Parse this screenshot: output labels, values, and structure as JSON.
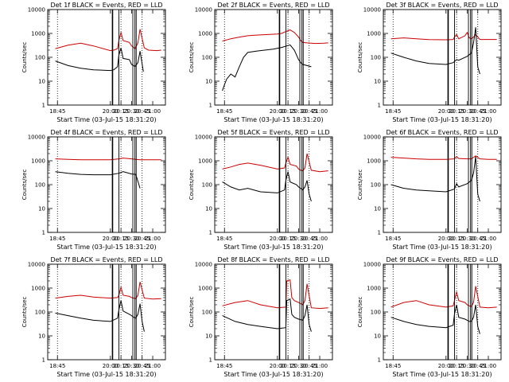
{
  "figure": {
    "xlabel": "Start Time (03-Jul-15 18:31:20)",
    "ylabel": "Counts/sec",
    "legend_black": "Events",
    "legend_red": "LLD",
    "black_color": "#000000",
    "red_color": "#cc0000"
  },
  "chart_data": [
    {
      "type": "line",
      "title": "Det 1f BLACK = Events, RED = LLD",
      "xlabel": "Start Time (03-Jul-15 18:31:20)",
      "ylabel": "Counts/sec",
      "y_scale": "log",
      "ylim": [
        1,
        10000
      ],
      "xlim": [
        "18:31",
        "21:18"
      ],
      "x_ticks": [
        "18:45",
        "20:00",
        "20:15",
        "20:30",
        "20:45",
        "21:00"
      ],
      "y_ticks": [
        "1",
        "10",
        "100",
        "1000",
        "10000"
      ],
      "series": [
        {
          "name": "LLD",
          "color": "#cc0000",
          "x": [
            18.7,
            19.0,
            19.3,
            19.6,
            20.0,
            20.08,
            20.17,
            20.2,
            20.25,
            20.3,
            20.45,
            20.5,
            20.55,
            20.58,
            20.65,
            20.7,
            20.8,
            20.9,
            21.1,
            21.2
          ],
          "y": [
            230,
            320,
            390,
            300,
            190,
            200,
            230,
            500,
            1100,
            500,
            420,
            300,
            260,
            220,
            400,
            1500,
            250,
            200,
            190,
            200
          ]
        },
        {
          "name": "Events",
          "color": "#000000",
          "x": [
            18.7,
            19.0,
            19.3,
            19.6,
            20.0,
            20.08,
            20.17,
            20.2,
            20.25,
            20.3,
            20.45,
            20.5,
            20.55,
            20.58,
            20.65,
            20.7,
            20.78
          ],
          "y": [
            70,
            45,
            35,
            30,
            28,
            30,
            40,
            120,
            250,
            90,
            80,
            50,
            45,
            40,
            60,
            180,
            25
          ]
        }
      ],
      "vlines_solid": [
        20.05,
        20.2,
        20.53,
        20.58,
        20.61
      ],
      "vlines_dotted": [
        18.75,
        20.25,
        20.75
      ]
    },
    {
      "type": "line",
      "title": "Det 2f BLACK = Events, RED = LLD",
      "xlabel": "Start Time (03-Jul-15 18:31:20)",
      "ylabel": "Counts/sec",
      "y_scale": "log",
      "ylim": [
        1,
        10000
      ],
      "xlim": [
        "18:31",
        "21:18"
      ],
      "x_ticks": [
        "18:45",
        "20:00",
        "20:15",
        "20:30",
        "20:45",
        "21:00"
      ],
      "y_ticks": [
        "1",
        "10",
        "100",
        "1000",
        "10000"
      ],
      "series": [
        {
          "name": "LLD",
          "color": "#cc0000",
          "x": [
            18.7,
            18.9,
            19.1,
            19.3,
            19.5,
            20.0,
            20.1,
            20.2,
            20.3,
            20.4,
            20.5,
            20.55,
            20.6,
            20.7,
            20.9,
            21.1,
            21.2
          ],
          "y": [
            480,
            600,
            700,
            800,
            850,
            950,
            1000,
            1200,
            1400,
            1100,
            700,
            500,
            420,
            400,
            380,
            390,
            400
          ]
        },
        {
          "name": "Events",
          "color": "#000000",
          "x": [
            18.7,
            18.75,
            18.8,
            18.9,
            19.0,
            19.1,
            19.2,
            19.3,
            19.5,
            19.7,
            19.9,
            20.1,
            20.3,
            20.4,
            20.5,
            20.55,
            20.6,
            20.7,
            20.8
          ],
          "y": [
            4,
            7,
            12,
            20,
            15,
            40,
            100,
            160,
            180,
            200,
            220,
            260,
            330,
            200,
            80,
            60,
            50,
            45,
            40
          ]
        }
      ],
      "vlines_solid": [
        20.05,
        20.2,
        20.53,
        20.58,
        20.61
      ],
      "vlines_dotted": [
        18.75,
        20.25,
        20.75
      ]
    },
    {
      "type": "line",
      "title": "Det 3f BLACK = Events, RED = LLD",
      "xlabel": "Start Time (03-Jul-15 18:31:20)",
      "ylabel": "Counts/sec",
      "y_scale": "log",
      "ylim": [
        1,
        10000
      ],
      "xlim": [
        "18:31",
        "21:18"
      ],
      "x_ticks": [
        "18:45",
        "20:00",
        "20:15",
        "20:30",
        "20:45",
        "21:00"
      ],
      "y_ticks": [
        "1",
        "10",
        "100",
        "1000",
        "10000"
      ],
      "series": [
        {
          "name": "LLD",
          "color": "#cc0000",
          "x": [
            18.7,
            19.0,
            19.3,
            19.6,
            20.0,
            20.17,
            20.2,
            20.25,
            20.3,
            20.45,
            20.5,
            20.55,
            20.6,
            20.65,
            20.7,
            20.8,
            21.0,
            21.2
          ],
          "y": [
            600,
            650,
            600,
            550,
            540,
            560,
            700,
            900,
            600,
            800,
            1100,
            650,
            600,
            700,
            900,
            560,
            560,
            560
          ]
        },
        {
          "name": "Events",
          "color": "#000000",
          "x": [
            18.7,
            19.0,
            19.3,
            19.6,
            20.0,
            20.17,
            20.25,
            20.3,
            20.5,
            20.6,
            20.65,
            20.7,
            20.75,
            20.8
          ],
          "y": [
            150,
            100,
            70,
            55,
            50,
            60,
            80,
            75,
            110,
            150,
            400,
            1800,
            40,
            20
          ]
        }
      ],
      "vlines_solid": [
        20.05,
        20.2,
        20.53,
        20.58,
        20.61
      ],
      "vlines_dotted": [
        18.75,
        20.25,
        20.75
      ]
    },
    {
      "type": "line",
      "title": "Det 4f BLACK = Events, RED = LLD",
      "xlabel": "Start Time (03-Jul-15 18:31:20)",
      "ylabel": "Counts/sec",
      "y_scale": "log",
      "ylim": [
        1,
        10000
      ],
      "xlim": [
        "18:31",
        "21:18"
      ],
      "x_ticks": [
        "18:45",
        "20:00",
        "20:15",
        "20:30",
        "20:45",
        "21:00"
      ],
      "y_ticks": [
        "1",
        "10",
        "100",
        "1000",
        "10000"
      ],
      "series": [
        {
          "name": "LLD",
          "color": "#cc0000",
          "x": [
            18.7,
            19.0,
            19.3,
            19.6,
            20.0,
            20.2,
            20.3,
            20.5,
            20.6,
            20.7,
            20.9,
            21.2
          ],
          "y": [
            1200,
            1150,
            1100,
            1100,
            1100,
            1200,
            1300,
            1200,
            1150,
            1100,
            1100,
            1100
          ]
        },
        {
          "name": "Events",
          "color": "#000000",
          "x": [
            18.7,
            19.0,
            19.3,
            19.6,
            20.0,
            20.2,
            20.3,
            20.5,
            20.6,
            20.7
          ],
          "y": [
            350,
            300,
            270,
            260,
            260,
            300,
            350,
            280,
            270,
            70
          ]
        }
      ],
      "vlines_solid": [
        20.05,
        20.2,
        20.53,
        20.58,
        20.61
      ],
      "vlines_dotted": [
        18.75,
        20.25,
        20.75
      ]
    },
    {
      "type": "line",
      "title": "Det 5f BLACK = Events, RED = LLD",
      "xlabel": "Start Time (03-Jul-15 18:31:20)",
      "ylabel": "Counts/sec",
      "y_scale": "log",
      "ylim": [
        1,
        10000
      ],
      "xlim": [
        "18:31",
        "21:18"
      ],
      "x_ticks": [
        "18:45",
        "20:00",
        "20:15",
        "20:30",
        "20:45",
        "21:00"
      ],
      "y_ticks": [
        "1",
        "10",
        "100",
        "1000",
        "10000"
      ],
      "series": [
        {
          "name": "LLD",
          "color": "#cc0000",
          "x": [
            18.7,
            18.9,
            19.1,
            19.3,
            19.6,
            20.0,
            20.17,
            20.2,
            20.25,
            20.3,
            20.45,
            20.5,
            20.55,
            20.6,
            20.65,
            20.7,
            20.8,
            21.0,
            21.2
          ],
          "y": [
            450,
            550,
            700,
            800,
            650,
            450,
            500,
            800,
            1400,
            700,
            600,
            450,
            400,
            380,
            500,
            2000,
            400,
            350,
            380
          ]
        },
        {
          "name": "Events",
          "color": "#000000",
          "x": [
            18.7,
            18.9,
            19.1,
            19.3,
            19.6,
            20.0,
            20.17,
            20.2,
            20.25,
            20.3,
            20.45,
            20.5,
            20.55,
            20.6,
            20.65,
            20.7,
            20.75,
            20.8
          ],
          "y": [
            130,
            80,
            60,
            70,
            50,
            45,
            60,
            150,
            350,
            130,
            100,
            80,
            70,
            60,
            80,
            150,
            40,
            20
          ]
        }
      ],
      "vlines_solid": [
        20.05,
        20.2,
        20.53,
        20.58,
        20.61
      ],
      "vlines_dotted": [
        18.75,
        20.25,
        20.75
      ]
    },
    {
      "type": "line",
      "title": "Det 6f BLACK = Events, RED = LLD",
      "xlabel": "Start Time (03-Jul-15 18:31:20)",
      "ylabel": "Counts/sec",
      "y_scale": "log",
      "ylim": [
        1,
        10000
      ],
      "xlim": [
        "18:31",
        "21:18"
      ],
      "x_ticks": [
        "18:45",
        "20:00",
        "20:15",
        "20:30",
        "20:45",
        "21:00"
      ],
      "y_ticks": [
        "1",
        "10",
        "100",
        "1000",
        "10000"
      ],
      "series": [
        {
          "name": "LLD",
          "color": "#cc0000",
          "x": [
            18.7,
            19.0,
            19.3,
            19.6,
            20.0,
            20.2,
            20.25,
            20.3,
            20.5,
            20.6,
            20.7,
            20.8,
            21.0,
            21.2
          ],
          "y": [
            1400,
            1300,
            1200,
            1150,
            1150,
            1200,
            1500,
            1250,
            1200,
            1200,
            1600,
            1200,
            1150,
            1150
          ]
        },
        {
          "name": "Events",
          "color": "#000000",
          "x": [
            18.7,
            19.0,
            19.3,
            19.6,
            20.0,
            20.2,
            20.25,
            20.3,
            20.5,
            20.6,
            20.65,
            20.7,
            20.75,
            20.8
          ],
          "y": [
            100,
            70,
            60,
            55,
            50,
            65,
            110,
            80,
            110,
            150,
            300,
            1500,
            40,
            20
          ]
        }
      ],
      "vlines_solid": [
        20.05,
        20.2,
        20.53,
        20.58,
        20.61
      ],
      "vlines_dotted": [
        18.75,
        20.25,
        20.75
      ]
    },
    {
      "type": "line",
      "title": "Det 7f BLACK = Events, RED = LLD",
      "xlabel": "Start Time (03-Jul-15 18:31:20)",
      "ylabel": "Counts/sec",
      "y_scale": "log",
      "ylim": [
        1,
        10000
      ],
      "xlim": [
        "18:31",
        "21:18"
      ],
      "x_ticks": [
        "18:45",
        "20:00",
        "20:15",
        "20:30",
        "20:45",
        "21:00"
      ],
      "y_ticks": [
        "1",
        "10",
        "100",
        "1000",
        "10000"
      ],
      "series": [
        {
          "name": "LLD",
          "color": "#cc0000",
          "x": [
            18.7,
            19.0,
            19.3,
            19.6,
            20.0,
            20.17,
            20.2,
            20.25,
            20.3,
            20.45,
            20.5,
            20.55,
            20.6,
            20.65,
            20.7,
            20.8,
            21.0,
            21.2
          ],
          "y": [
            380,
            450,
            500,
            420,
            380,
            400,
            500,
            1100,
            500,
            450,
            400,
            380,
            360,
            500,
            1800,
            380,
            350,
            360
          ]
        },
        {
          "name": "Events",
          "color": "#000000",
          "x": [
            18.7,
            19.0,
            19.3,
            19.6,
            20.0,
            20.17,
            20.2,
            20.25,
            20.3,
            20.45,
            20.5,
            20.55,
            20.6,
            20.65,
            20.7,
            20.75,
            20.8
          ],
          "y": [
            90,
            70,
            55,
            45,
            40,
            55,
            120,
            300,
            110,
            80,
            70,
            60,
            55,
            80,
            220,
            40,
            15
          ]
        }
      ],
      "vlines_solid": [
        20.05,
        20.2,
        20.53,
        20.58,
        20.61
      ],
      "vlines_dotted": [
        18.75,
        20.25,
        20.75
      ]
    },
    {
      "type": "line",
      "title": "Det 8f BLACK = Events, RED = LLD",
      "xlabel": "Start Time (03-Jul-15 18:31:20)",
      "ylabel": "Counts/sec",
      "y_scale": "log",
      "ylim": [
        1,
        10000
      ],
      "xlim": [
        "18:31",
        "21:18"
      ],
      "x_ticks": [
        "18:45",
        "20:00",
        "20:15",
        "20:30",
        "20:45",
        "21:00"
      ],
      "y_ticks": [
        "1",
        "10",
        "100",
        "1000",
        "10000"
      ],
      "series": [
        {
          "name": "LLD",
          "color": "#cc0000",
          "x": [
            18.7,
            19.0,
            19.3,
            19.6,
            20.0,
            20.2,
            20.22,
            20.3,
            20.34,
            20.4,
            20.5,
            20.6,
            20.65,
            20.7,
            20.8,
            21.0,
            21.2
          ],
          "y": [
            180,
            250,
            300,
            200,
            150,
            160,
            2000,
            2200,
            400,
            300,
            250,
            200,
            300,
            1500,
            150,
            140,
            150
          ]
        },
        {
          "name": "Events",
          "color": "#000000",
          "x": [
            18.7,
            19.0,
            19.3,
            19.6,
            20.0,
            20.2,
            20.22,
            20.3,
            20.34,
            20.4,
            20.5,
            20.6,
            20.65,
            20.7,
            20.75,
            20.8
          ],
          "y": [
            70,
            40,
            30,
            25,
            20,
            22,
            300,
            350,
            80,
            60,
            50,
            45,
            70,
            200,
            30,
            15
          ]
        }
      ],
      "vlines_solid": [
        20.05,
        20.2,
        20.53,
        20.58,
        20.61
      ],
      "vlines_dotted": [
        18.75,
        20.25,
        20.75
      ]
    },
    {
      "type": "line",
      "title": "Det 9f BLACK = Events, RED = LLD",
      "xlabel": "Start Time (03-Jul-15 18:31:20)",
      "ylabel": "Counts/sec",
      "y_scale": "log",
      "ylim": [
        1,
        10000
      ],
      "xlim": [
        "18:31",
        "21:18"
      ],
      "x_ticks": [
        "18:45",
        "20:00",
        "20:15",
        "20:30",
        "20:45",
        "21:00"
      ],
      "y_ticks": [
        "1",
        "10",
        "100",
        "1000",
        "10000"
      ],
      "series": [
        {
          "name": "LLD",
          "color": "#cc0000",
          "x": [
            18.7,
            19.0,
            19.3,
            19.6,
            20.0,
            20.17,
            20.2,
            20.25,
            20.3,
            20.45,
            20.5,
            20.55,
            20.6,
            20.65,
            20.7,
            20.8,
            21.0,
            21.2
          ],
          "y": [
            160,
            250,
            300,
            200,
            160,
            180,
            300,
            700,
            300,
            250,
            200,
            180,
            170,
            250,
            1200,
            160,
            150,
            160
          ]
        },
        {
          "name": "Events",
          "color": "#000000",
          "x": [
            18.7,
            19.0,
            19.3,
            19.6,
            20.0,
            20.17,
            20.2,
            20.25,
            20.3,
            20.45,
            20.5,
            20.55,
            20.6,
            20.65,
            20.7,
            20.75,
            20.8
          ],
          "y": [
            60,
            40,
            30,
            25,
            22,
            28,
            80,
            200,
            60,
            50,
            45,
            40,
            40,
            60,
            200,
            25,
            12
          ]
        }
      ],
      "vlines_solid": [
        20.05,
        20.2,
        20.53,
        20.58,
        20.61
      ],
      "vlines_dotted": [
        18.75,
        20.25,
        20.75
      ]
    }
  ]
}
